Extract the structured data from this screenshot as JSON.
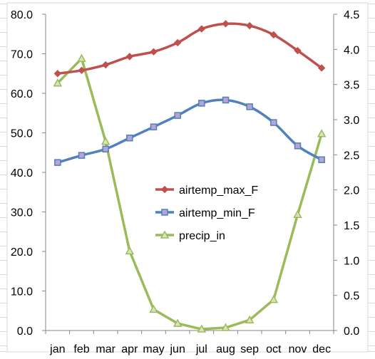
{
  "chart_data": {
    "type": "line",
    "title": "",
    "xlabel": "",
    "ylabel": "",
    "categories": [
      "jan",
      "feb",
      "mar",
      "apr",
      "may",
      "jun",
      "jul",
      "aug",
      "sep",
      "oct",
      "nov",
      "dec"
    ],
    "y_left": {
      "lim": [
        0,
        80
      ],
      "ticks": [
        "0.0",
        "10.0",
        "20.0",
        "30.0",
        "40.0",
        "50.0",
        "60.0",
        "70.0",
        "80.0"
      ]
    },
    "y_right": {
      "lim": [
        0,
        4.5
      ],
      "ticks": [
        "0.0",
        "0.5",
        "1.0",
        "1.5",
        "2.0",
        "2.5",
        "3.0",
        "3.5",
        "4.0",
        "4.5"
      ]
    },
    "grid": false,
    "legend_position": "center",
    "series": [
      {
        "name": "airtemp_max_F",
        "axis": "left",
        "color": "#c0504d",
        "marker": "diamond",
        "values": [
          65.0,
          65.8,
          67.2,
          69.3,
          70.5,
          72.8,
          76.3,
          77.6,
          77.1,
          74.8,
          70.8,
          66.4
        ]
      },
      {
        "name": "airtemp_min_F",
        "axis": "left",
        "color": "#4f81bd",
        "marker": "square",
        "values": [
          42.5,
          44.3,
          45.9,
          48.7,
          51.5,
          54.4,
          57.5,
          58.3,
          56.6,
          52.6,
          46.7,
          43.2
        ]
      },
      {
        "name": "precip_in",
        "axis": "right",
        "color": "#9bbb59",
        "marker": "triangle",
        "values": [
          3.52,
          3.87,
          2.69,
          1.13,
          0.3,
          0.1,
          0.02,
          0.04,
          0.15,
          0.44,
          1.65,
          2.8
        ]
      }
    ]
  }
}
